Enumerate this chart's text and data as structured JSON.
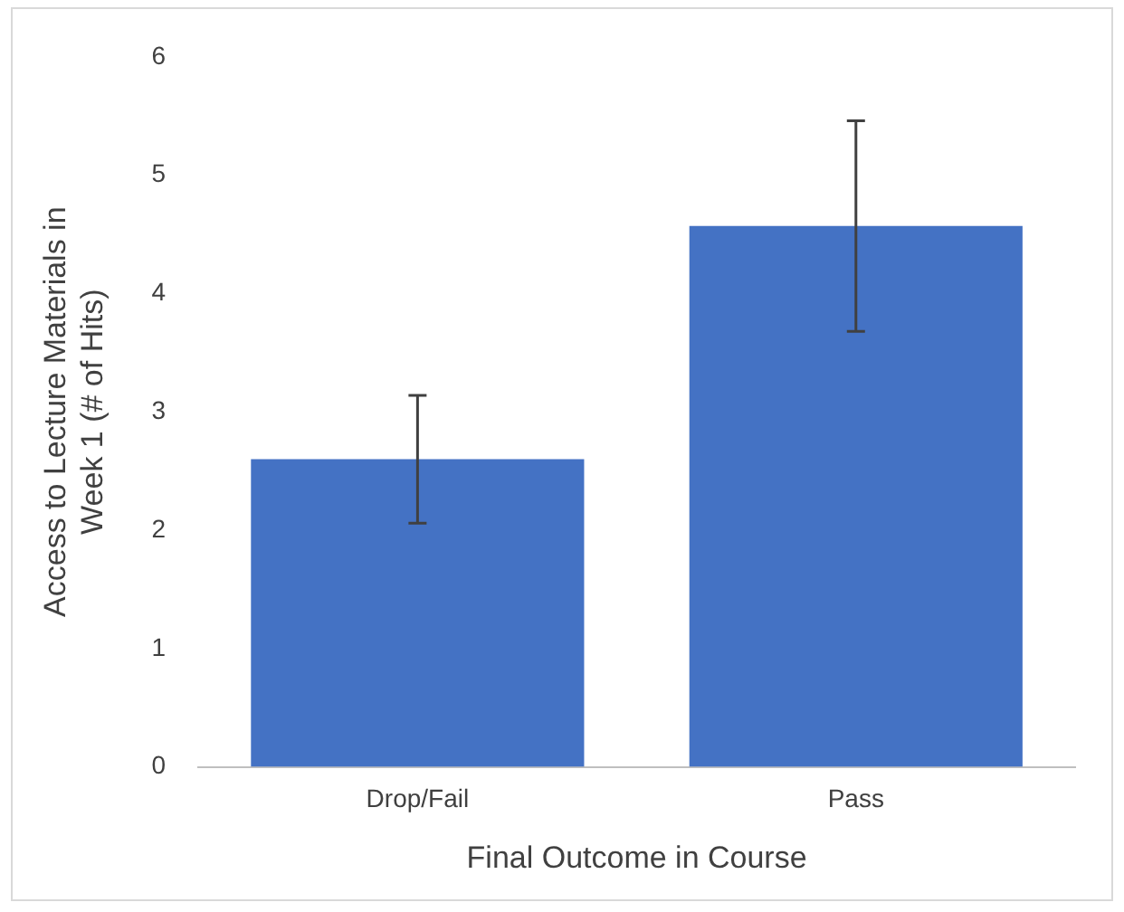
{
  "chart_data": {
    "type": "bar",
    "xlabel": "Final Outcome in Course",
    "ylabel": "Access to Lecture Materials in Week 1 (# of Hits)",
    "categories": [
      "Drop/Fail",
      "Pass"
    ],
    "values": [
      2.6,
      4.57
    ],
    "errors": [
      0.54,
      0.89
    ],
    "color": "#4472c4",
    "ylim": [
      0,
      6
    ],
    "yticks": [
      0,
      1,
      2,
      3,
      4,
      5,
      6
    ],
    "grid": false,
    "legend": false
  }
}
